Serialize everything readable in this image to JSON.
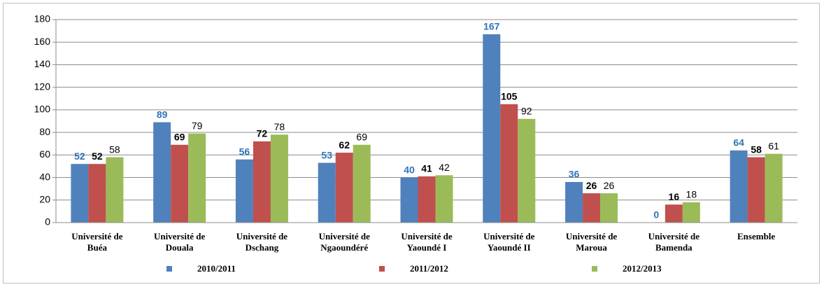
{
  "chart_data": {
    "type": "bar",
    "categories": [
      "Université de Buéa",
      "Université de Douala",
      "Université de Dschang",
      "Université de Ngaoundéré",
      "Université de Yaoundé I",
      "Université de Yaoundé II",
      "Université de Maroua",
      "Université de Bamenda",
      "Ensemble"
    ],
    "series": [
      {
        "name": "2010/2011",
        "color": "#4f81bd",
        "values": [
          52,
          89,
          56,
          53,
          40,
          167,
          36,
          0,
          64
        ]
      },
      {
        "name": "2011/2012",
        "color": "#c0504d",
        "values": [
          52,
          69,
          72,
          62,
          41,
          105,
          26,
          16,
          58
        ]
      },
      {
        "name": "2012/2013",
        "color": "#9bbb59",
        "values": [
          58,
          79,
          78,
          69,
          42,
          92,
          26,
          18,
          61
        ]
      }
    ],
    "ylim": [
      0,
      180
    ],
    "yticks": [
      0,
      20,
      40,
      60,
      80,
      100,
      120,
      140,
      160,
      180
    ],
    "grid": true,
    "legend": "bottom"
  }
}
